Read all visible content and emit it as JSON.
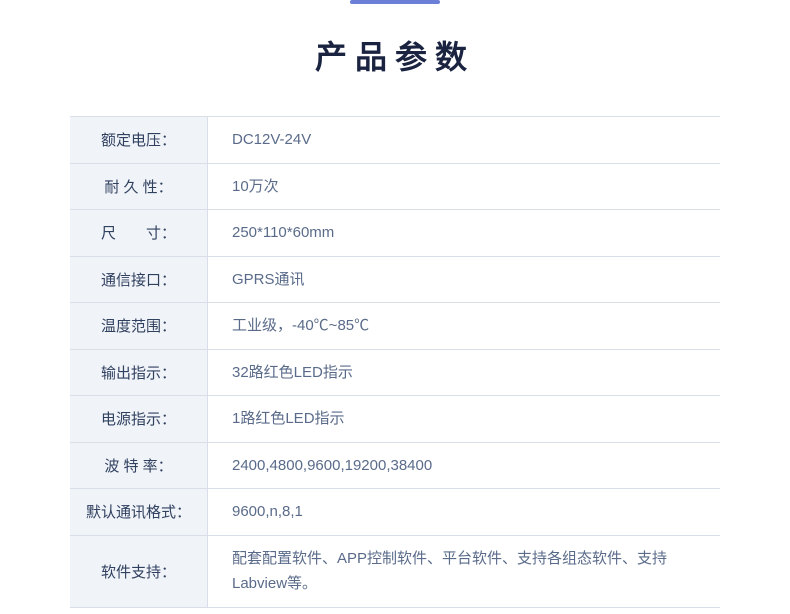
{
  "page": {
    "title": "产品参数",
    "accent_color": "#6b7fd6",
    "title_color": "#1a2340",
    "border_color": "#d8dfe8",
    "label_bg": "#f0f3f8",
    "label_color": "#30405f",
    "value_color": "#5a6b8a",
    "title_fontsize": 32,
    "cell_fontsize": 15
  },
  "specs": [
    {
      "label": "额定电压：",
      "value": "DC12V-24V"
    },
    {
      "label": "耐 久 性：",
      "value": "10万次"
    },
    {
      "label": "尺　　寸：",
      "value": "250*110*60mm"
    },
    {
      "label": "通信接口：",
      "value": "GPRS通讯"
    },
    {
      "label": "温度范围：",
      "value": "工业级，-40℃~85℃"
    },
    {
      "label": "输出指示：",
      "value": "32路红色LED指示"
    },
    {
      "label": "电源指示：",
      "value": "1路红色LED指示"
    },
    {
      "label": "波 特 率：",
      "value": "2400,4800,9600,19200,38400"
    },
    {
      "label": "默认通讯格式：",
      "value": "9600,n,8,1"
    },
    {
      "label": "软件支持：",
      "value": "配套配置软件、APP控制软件、平台软件、支持各组态软件、支持Labview等。",
      "tall": true
    }
  ]
}
